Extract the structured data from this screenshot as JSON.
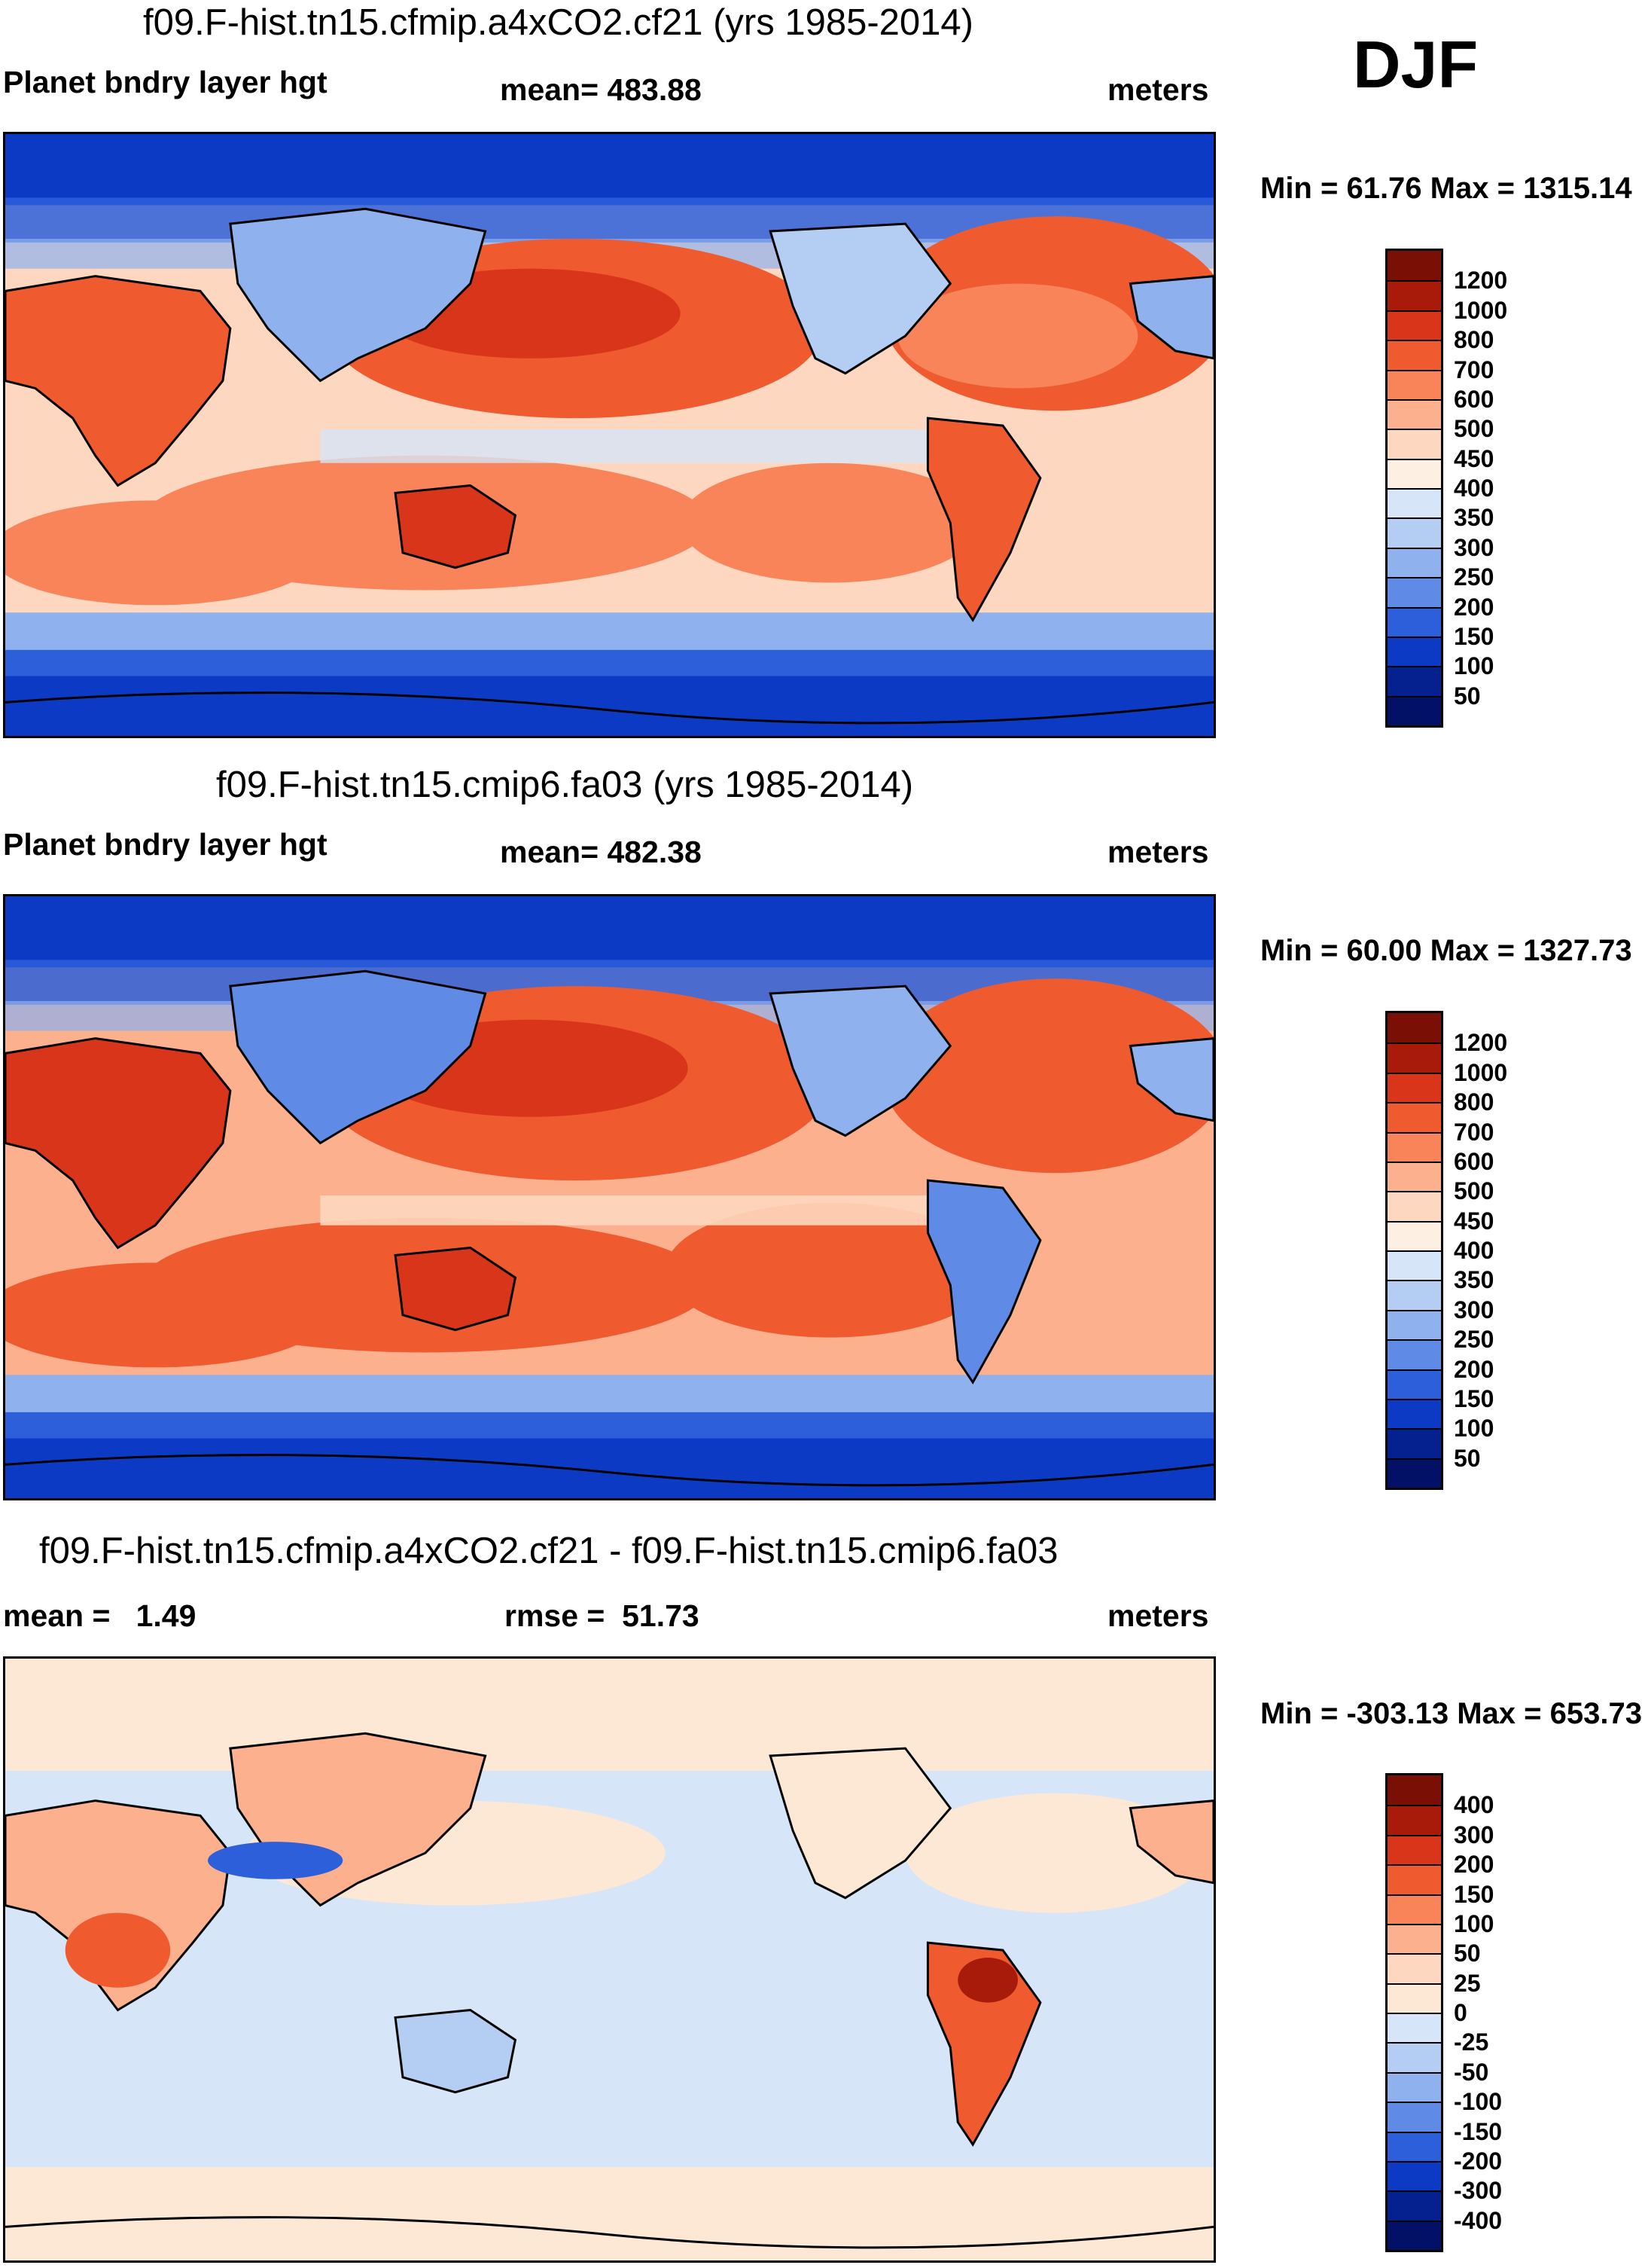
{
  "season": "DJF",
  "panels": [
    {
      "id": "top",
      "title": "f09.F-hist.tn15.cfmip.a4xCO2.cf21 (yrs 1985-2014)",
      "left_label": "Planet bndry layer hgt",
      "center_label": "mean= 483.88",
      "right_label": "meters",
      "minmax": "Min =  61.76 Max = 1315.14",
      "colorbar": {
        "labels": [
          "1200",
          "1000",
          "800",
          "700",
          "600",
          "500",
          "450",
          "400",
          "350",
          "300",
          "250",
          "200",
          "150",
          "100",
          "50"
        ],
        "colors": [
          "#7a0f05",
          "#a81a0a",
          "#d8351a",
          "#ef5a2e",
          "#f9845a",
          "#fcb08d",
          "#fdd7bf",
          "#fdf0e3",
          "#d6e5f7",
          "#b4cdf2",
          "#8fb1ee",
          "#5f8ae6",
          "#2d5fdb",
          "#0d3ac5",
          "#05208f",
          "#021066"
        ]
      }
    },
    {
      "id": "middle",
      "title": "f09.F-hist.tn15.cmip6.fa03 (yrs 1985-2014)",
      "left_label": "Planet bndry layer hgt",
      "center_label": "mean= 482.38",
      "right_label": "meters",
      "minmax": "Min =  60.00 Max = 1327.73",
      "colorbar": {
        "labels": [
          "1200",
          "1000",
          "800",
          "700",
          "600",
          "500",
          "450",
          "400",
          "350",
          "300",
          "250",
          "200",
          "150",
          "100",
          "50"
        ],
        "colors": [
          "#7a0f05",
          "#a81a0a",
          "#d8351a",
          "#ef5a2e",
          "#f9845a",
          "#fcb08d",
          "#fdd7bf",
          "#fdf0e3",
          "#d6e5f7",
          "#b4cdf2",
          "#8fb1ee",
          "#5f8ae6",
          "#2d5fdb",
          "#0d3ac5",
          "#05208f",
          "#021066"
        ]
      }
    },
    {
      "id": "bottom",
      "title": "f09.F-hist.tn15.cfmip.a4xCO2.cf21 - f09.F-hist.tn15.cmip6.fa03",
      "left_label": "mean =   1.49",
      "center_label": "rmse =  51.73",
      "right_label": "meters",
      "minmax": "Min = -303.13 Max = 653.73",
      "colorbar": {
        "labels": [
          "400",
          "300",
          "200",
          "150",
          "100",
          "50",
          "25",
          "0",
          "-25",
          "-50",
          "-100",
          "-150",
          "-200",
          "-300",
          "-400"
        ],
        "colors": [
          "#7a0f05",
          "#a81a0a",
          "#d8351a",
          "#ef5a2e",
          "#f9845a",
          "#fcb08d",
          "#fdd7bf",
          "#fde8d6",
          "#d6e5f7",
          "#b4cdf2",
          "#8fb1ee",
          "#5f8ae6",
          "#2d5fdb",
          "#0d3ac5",
          "#05208f",
          "#021066"
        ]
      }
    }
  ]
}
